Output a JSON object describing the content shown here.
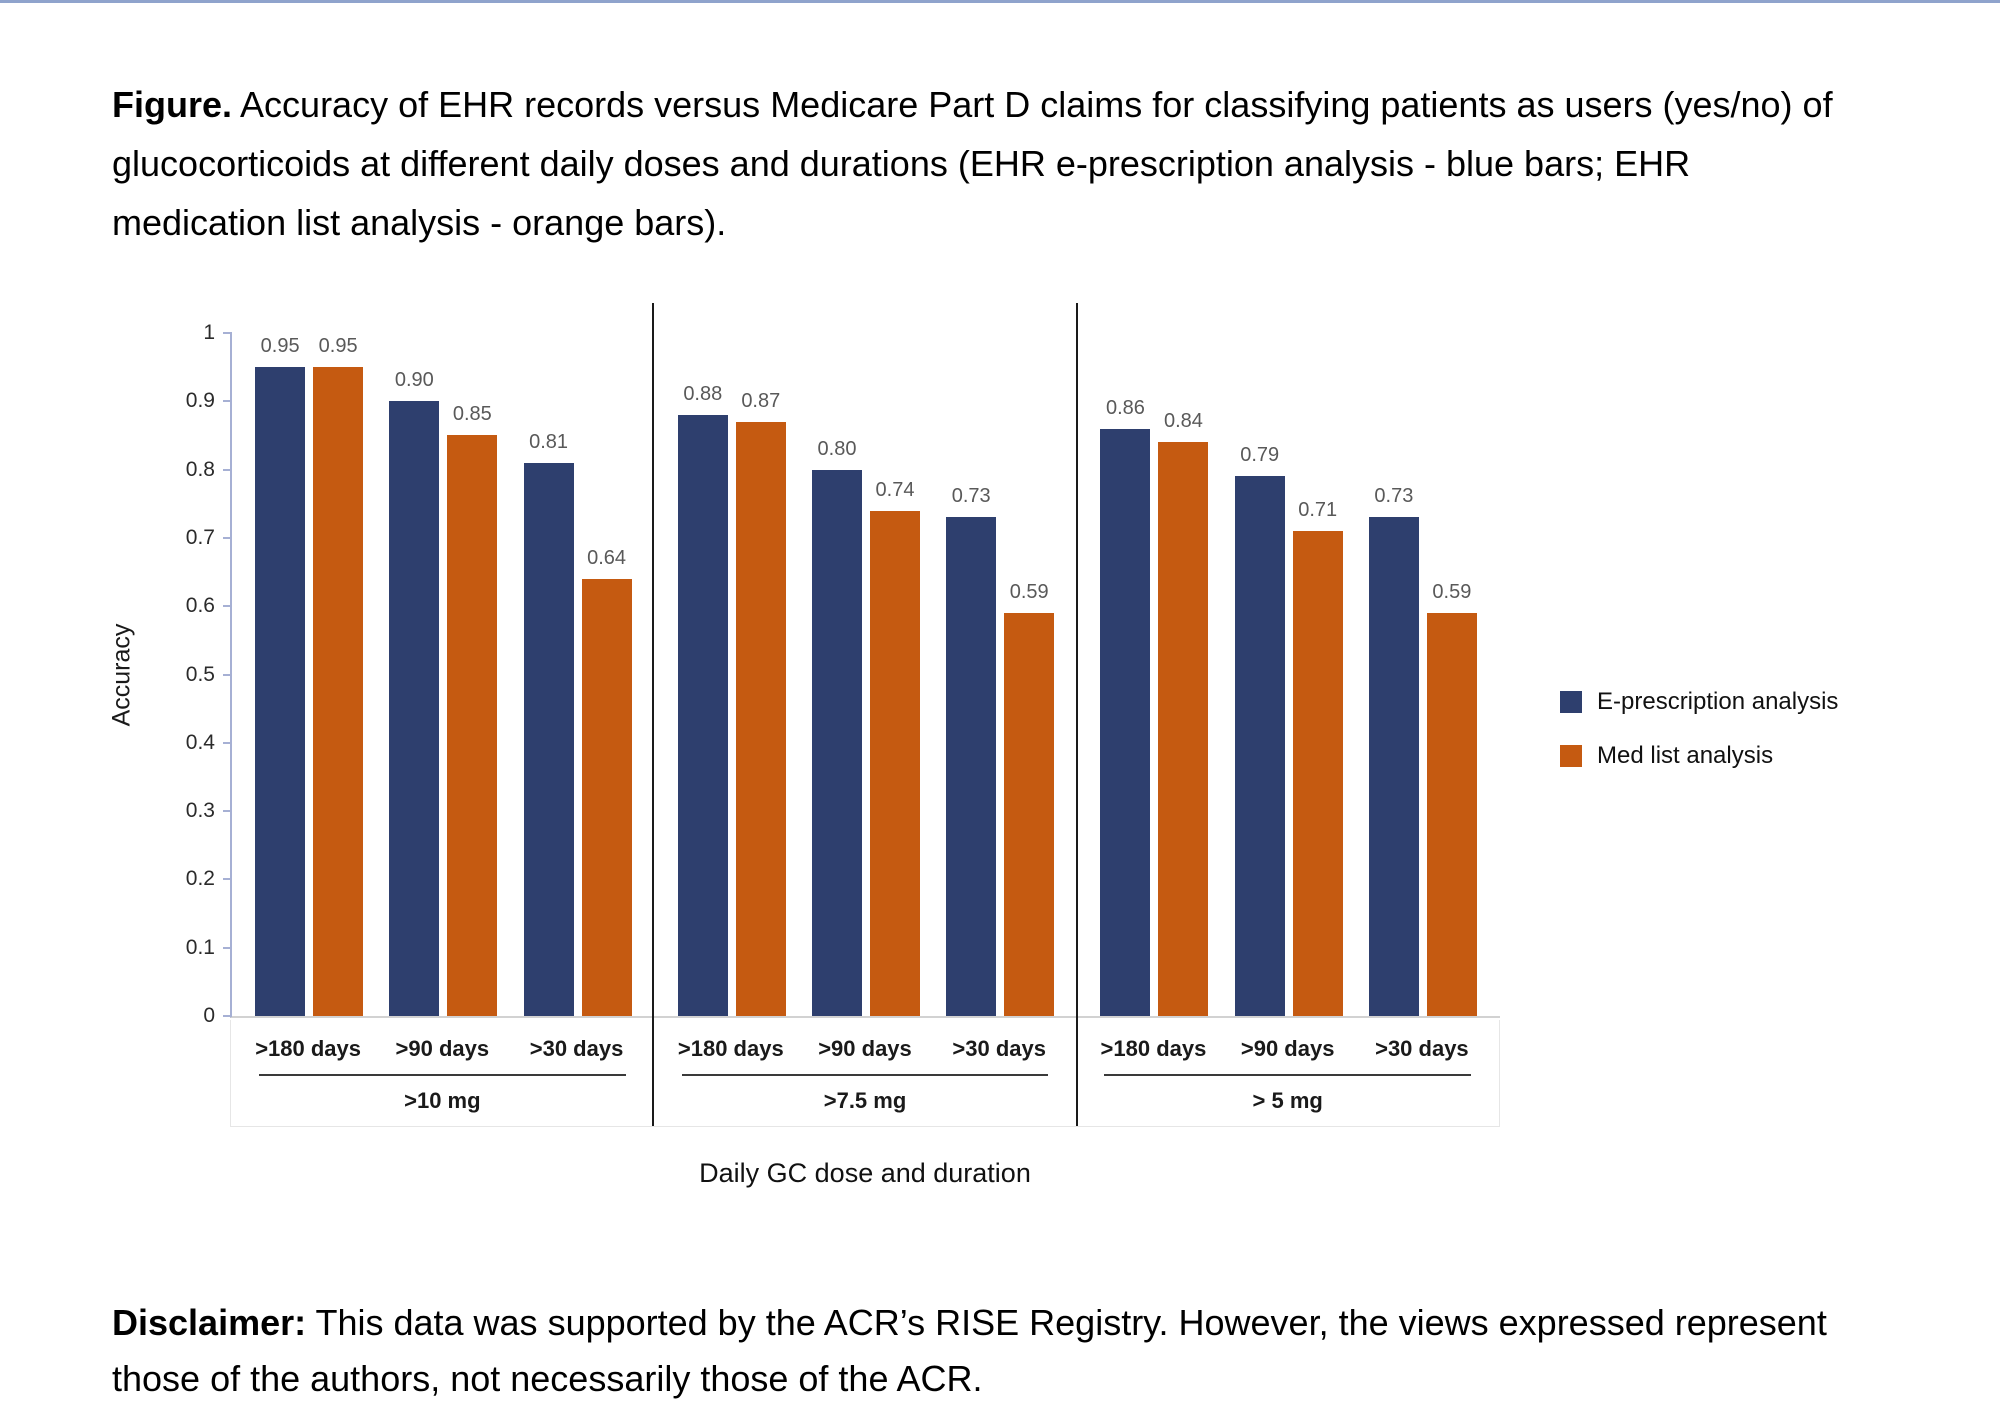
{
  "page": {
    "title_bold": "Figure.",
    "title_rest": " Accuracy of EHR records versus Medicare Part D claims for classifying patients as users (yes/no) of glucocorticoids at different daily doses and durations (EHR e-prescription analysis - blue bars; EHR medication list analysis - orange bars).",
    "disclaimer_bold": "Disclaimer:",
    "disclaimer_rest": " This data was supported by the ACR’s RISE Registry. However, the views expressed represent those of the authors, not necessarily those of the ACR."
  },
  "chart_data": {
    "type": "bar",
    "title": "",
    "ylabel": "Accuracy",
    "xlabel": "Daily GC dose and duration",
    "ylim": [
      0,
      1
    ],
    "grid": false,
    "legend_position": "right",
    "y_tick_labels": [
      "0",
      "0.1",
      "0.2",
      "0.3",
      "0.4",
      "0.5",
      "0.6",
      "0.7",
      "0.8",
      "0.9",
      "1"
    ],
    "categories": [
      ">180 days",
      ">90 days",
      ">30 days"
    ],
    "series_meta": [
      {
        "name": "E-prescription analysis",
        "color": "#2e3f6e"
      },
      {
        "name": "Med list analysis",
        "color": "#c55a11"
      }
    ],
    "groups": [
      {
        "label": ">10 mg",
        "series": [
          {
            "name": "E-prescription analysis",
            "values": [
              0.95,
              0.9,
              0.81
            ]
          },
          {
            "name": "Med list analysis",
            "values": [
              0.95,
              0.85,
              0.64
            ]
          }
        ]
      },
      {
        "label": ">7.5 mg",
        "series": [
          {
            "name": "E-prescription analysis",
            "values": [
              0.88,
              0.8,
              0.73
            ]
          },
          {
            "name": "Med list analysis",
            "values": [
              0.87,
              0.74,
              0.59
            ]
          }
        ]
      },
      {
        "label": "> 5 mg",
        "series": [
          {
            "name": "E-prescription analysis",
            "values": [
              0.86,
              0.79,
              0.73
            ]
          },
          {
            "name": "Med list analysis",
            "values": [
              0.84,
              0.71,
              0.59
            ]
          }
        ]
      }
    ]
  }
}
